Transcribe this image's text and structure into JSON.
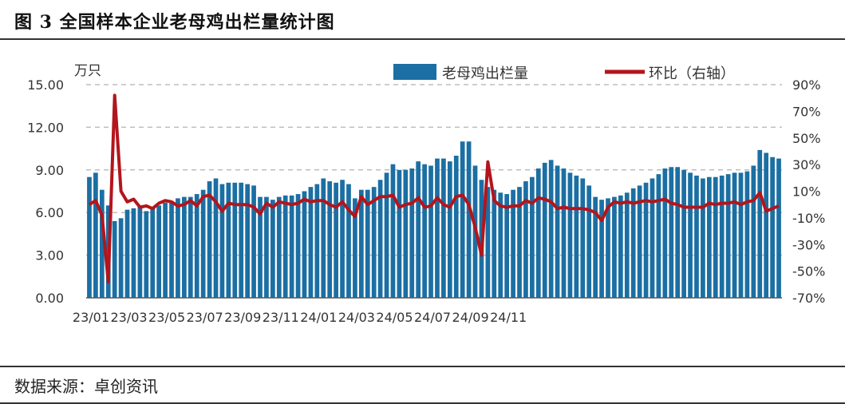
{
  "figure_title": "图 3 全国样本企业老母鸡出栏量统计图",
  "source": "数据来源：卓创资讯",
  "chart_data": {
    "type": "bar",
    "title": "图 3 全国样本企业老母鸡出栏量统计图",
    "left_unit": "万只",
    "y_left": {
      "min": 0,
      "max": 15,
      "ticks": [
        "0.00",
        "3.00",
        "6.00",
        "9.00",
        "12.00",
        "15.00"
      ]
    },
    "y_right": {
      "min": -70,
      "max": 90,
      "ticks": [
        "-70%",
        "-50%",
        "-30%",
        "-10%",
        "10%",
        "30%",
        "50%",
        "70%",
        "90%"
      ]
    },
    "x_tick_labels": [
      "23/01",
      "23/03",
      "23/05",
      "23/07",
      "23/09",
      "23/11",
      "24/01",
      "24/03",
      "24/05",
      "24/07",
      "24/09",
      "24/11"
    ],
    "grid": "horizontal dashed",
    "legend_position": "top",
    "series": [
      {
        "name": "老母鸡出栏量",
        "axis": "left",
        "color": "#1b6fa3",
        "values": [
          8.5,
          8.8,
          7.6,
          6.5,
          5.4,
          5.6,
          6.2,
          6.3,
          6.4,
          6.1,
          6.3,
          6.5,
          6.7,
          6.8,
          7.0,
          7.1,
          7.1,
          7.3,
          7.6,
          8.2,
          8.4,
          8.0,
          8.1,
          8.1,
          8.1,
          8.0,
          7.9,
          7.1,
          7.1,
          6.9,
          7.1,
          7.2,
          7.2,
          7.3,
          7.5,
          7.8,
          8.0,
          8.4,
          8.2,
          8.1,
          8.3,
          8.0,
          7.0,
          7.6,
          7.6,
          7.8,
          8.3,
          8.8,
          9.4,
          9.0,
          9.0,
          9.1,
          9.6,
          9.4,
          9.3,
          9.8,
          9.8,
          9.6,
          10.0,
          11.0,
          11.0,
          9.3,
          8.3,
          7.8,
          7.6,
          7.4,
          7.3,
          7.6,
          7.8,
          8.2,
          8.5,
          9.1,
          9.5,
          9.7,
          9.3,
          9.1,
          8.8,
          8.6,
          8.4,
          7.9,
          7.1,
          6.9,
          7.0,
          7.1,
          7.2,
          7.4,
          7.7,
          7.9,
          8.1,
          8.4,
          8.7,
          9.1,
          9.2,
          9.2,
          9.0,
          8.8,
          8.6,
          8.4,
          8.5,
          8.5,
          8.6,
          8.7,
          8.8,
          8.8,
          8.9,
          9.3,
          10.4,
          10.2,
          9.9,
          9.8
        ]
      },
      {
        "name": "环比（右轴）",
        "axis": "right",
        "color": "#b3151c",
        "values": [
          0,
          3,
          -8,
          -58,
          82,
          10,
          2,
          4,
          -2,
          -1,
          -3,
          1,
          3,
          2,
          -1,
          0,
          3,
          -1,
          6,
          7,
          2,
          -5,
          1,
          0,
          0,
          0,
          -2,
          -7,
          1,
          -2,
          2,
          1,
          0,
          1,
          4,
          2,
          3,
          3,
          0,
          -2,
          2,
          -4,
          -9,
          6,
          0,
          3,
          6,
          6,
          7,
          -2,
          0,
          1,
          5,
          -2,
          -1,
          5,
          0,
          -2,
          6,
          7,
          0,
          -17,
          -38,
          32,
          3,
          -1,
          -2,
          -1,
          -1,
          3,
          1,
          5,
          4,
          2,
          -3,
          -2,
          -3,
          -3,
          -3,
          -4,
          -6,
          -12,
          -2,
          2,
          1,
          2,
          1,
          2,
          3,
          2,
          3,
          4,
          1,
          0,
          -2,
          -2,
          -2,
          -2,
          1,
          0,
          1,
          1,
          2,
          0,
          2,
          3,
          9,
          -5,
          -3,
          -1
        ]
      }
    ]
  }
}
